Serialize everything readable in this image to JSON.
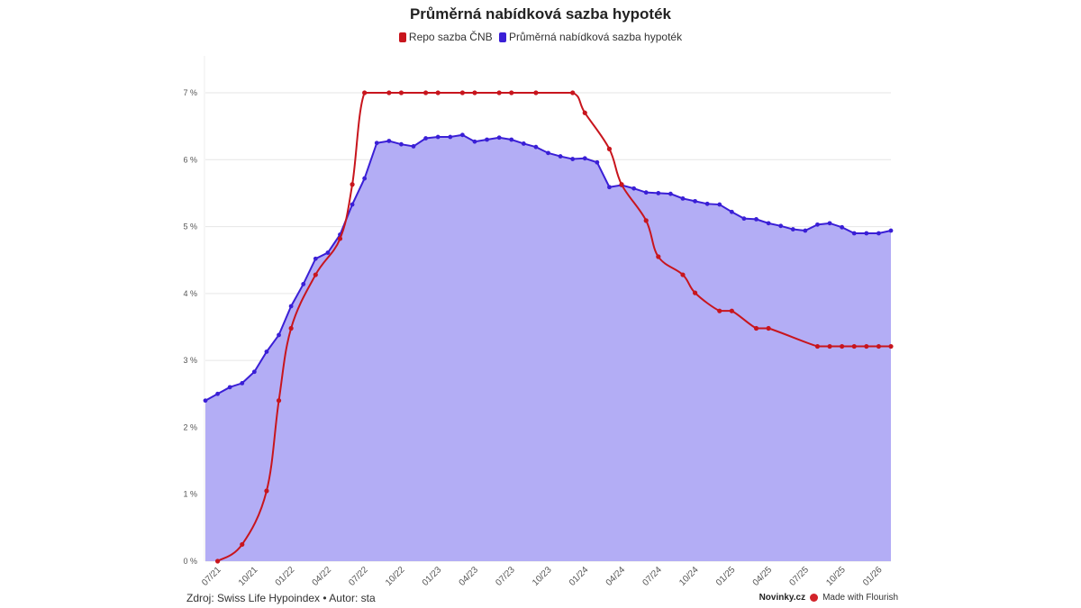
{
  "chart_data": {
    "type": "line",
    "title": "Průměrná nabídková sazba hypoték",
    "legend": [
      {
        "name": "Repo sazba ČNB",
        "color": "#c8151d"
      },
      {
        "name": "Průměrná nabídková sazba hypoték",
        "color": "#3a1fd6"
      }
    ],
    "legend_position": "top",
    "ylim": [
      0,
      7
    ],
    "y_ticks": [
      "0 %",
      "1 %",
      "2 %",
      "3 %",
      "4 %",
      "5 %",
      "6 %",
      "7 %"
    ],
    "x_ticks": [
      "07/21",
      "10/21",
      "01/22",
      "04/22",
      "07/22",
      "10/22",
      "01/23",
      "04/23",
      "07/23",
      "10/23",
      "01/24",
      "04/24",
      "07/24",
      "10/24",
      "01/25",
      "04/25",
      "07/25",
      "10/25",
      "01/26"
    ],
    "grid": true,
    "x": [
      "06/21",
      "07/21",
      "08/21",
      "09/21",
      "10/21",
      "11/21",
      "12/21",
      "01/22",
      "02/22",
      "03/22",
      "04/22",
      "05/22",
      "06/22",
      "07/22",
      "08/22",
      "09/22",
      "10/22",
      "11/22",
      "12/22",
      "01/23",
      "02/23",
      "03/23",
      "04/23",
      "05/23",
      "06/23",
      "07/23",
      "08/23",
      "09/23",
      "10/23",
      "11/23",
      "12/23",
      "01/24",
      "02/24",
      "03/24",
      "04/24",
      "05/24",
      "06/24",
      "07/24",
      "08/24",
      "09/24",
      "10/24",
      "11/24",
      "12/24",
      "01/25",
      "02/25",
      "03/25",
      "04/25",
      "05/25",
      "06/25",
      "07/25",
      "08/25",
      "09/25",
      "10/25",
      "11/25",
      "12/25",
      "01/26",
      "02/26"
    ],
    "series": [
      {
        "name": "Průměrná nabídková sazba hypoték",
        "style": "area",
        "values": [
          2.4,
          2.5,
          2.6,
          2.66,
          2.83,
          3.13,
          3.38,
          3.81,
          4.14,
          4.52,
          4.61,
          4.88,
          5.33,
          5.72,
          6.25,
          6.28,
          6.23,
          6.2,
          6.32,
          6.34,
          6.34,
          6.37,
          6.27,
          6.3,
          6.33,
          6.3,
          6.24,
          6.19,
          6.1,
          6.05,
          6.01,
          6.02,
          5.96,
          5.59,
          5.62,
          5.57,
          5.51,
          5.5,
          5.49,
          5.42,
          5.38,
          5.34,
          5.33,
          5.22,
          5.12,
          5.11,
          5.05,
          5.01,
          4.96,
          4.94,
          5.03,
          5.05,
          4.99,
          4.9,
          4.9,
          4.9,
          4.94
        ]
      },
      {
        "name": "Repo sazba ČNB",
        "style": "line",
        "points": [
          {
            "x": "07/21",
            "y": 0
          },
          {
            "x": "09/21",
            "y": 0.25
          },
          {
            "x": "11/21",
            "y": 1.05
          },
          {
            "x": "12/21",
            "y": 2.4
          },
          {
            "x": "01/22",
            "y": 3.48
          },
          {
            "x": "03/22",
            "y": 4.28
          },
          {
            "x": "05/22",
            "y": 4.82
          },
          {
            "x": "06/22",
            "y": 5.63
          },
          {
            "x": "07/22",
            "y": 7.0
          },
          {
            "x": "09/22",
            "y": 7.0
          },
          {
            "x": "10/22",
            "y": 7.0
          },
          {
            "x": "12/22",
            "y": 7.0
          },
          {
            "x": "01/23",
            "y": 7.0
          },
          {
            "x": "03/23",
            "y": 7.0
          },
          {
            "x": "04/23",
            "y": 7.0
          },
          {
            "x": "06/23",
            "y": 7.0
          },
          {
            "x": "07/23",
            "y": 7.0
          },
          {
            "x": "09/23",
            "y": 7.0
          },
          {
            "x": "12/23",
            "y": 7.0
          },
          {
            "x": "01/24",
            "y": 6.7
          },
          {
            "x": "03/24",
            "y": 6.16
          },
          {
            "x": "04/24",
            "y": 5.63
          },
          {
            "x": "06/24",
            "y": 5.09
          },
          {
            "x": "07/24",
            "y": 4.55
          },
          {
            "x": "09/24",
            "y": 4.28
          },
          {
            "x": "10/24",
            "y": 4.01
          },
          {
            "x": "12/24",
            "y": 3.74
          },
          {
            "x": "01/25",
            "y": 3.74
          },
          {
            "x": "03/25",
            "y": 3.48
          },
          {
            "x": "04/25",
            "y": 3.48
          },
          {
            "x": "08/25",
            "y": 3.21
          },
          {
            "x": "09/25",
            "y": 3.21
          },
          {
            "x": "10/25",
            "y": 3.21
          },
          {
            "x": "11/25",
            "y": 3.21
          },
          {
            "x": "12/25",
            "y": 3.21
          },
          {
            "x": "01/26",
            "y": 3.21
          },
          {
            "x": "02/26",
            "y": 3.21
          }
        ]
      }
    ],
    "fill_color": "#b3adf5"
  },
  "footer": {
    "source": "Zdroj: Swiss Life Hypoindex • Autor: sta",
    "brand": "Novinky.cz",
    "made_with": "Made with Flourish"
  }
}
